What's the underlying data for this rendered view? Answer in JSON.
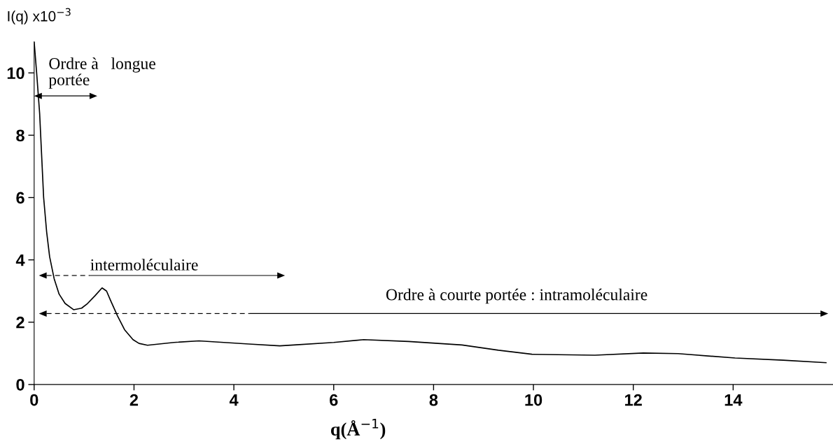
{
  "chart_data": {
    "type": "line",
    "xlabel": "q(Å$^{−1}$)",
    "ylabel": "I(q) x10$^{−3}$",
    "series": [
      {
        "color": "#000000",
        "x": [
          0.0,
          0.05,
          0.11,
          0.19,
          0.25,
          0.31,
          0.4,
          0.5,
          0.62,
          0.79,
          0.95,
          1.07,
          1.22,
          1.36,
          1.45,
          1.53,
          1.67,
          1.81,
          1.98,
          2.1,
          2.27,
          2.8,
          3.3,
          3.8,
          4.3,
          4.92,
          5.2,
          6.0,
          6.6,
          7.5,
          8.57,
          9.3,
          9.97,
          11.23,
          12.2,
          12.9,
          14.04,
          15.0,
          15.86
        ],
        "values": [
          11.0,
          10.0,
          8.7,
          6.0,
          4.9,
          4.1,
          3.4,
          2.9,
          2.6,
          2.4,
          2.45,
          2.6,
          2.85,
          3.1,
          3.0,
          2.7,
          2.2,
          1.76,
          1.44,
          1.32,
          1.26,
          1.35,
          1.4,
          1.35,
          1.3,
          1.24,
          1.27,
          1.35,
          1.44,
          1.38,
          1.27,
          1.1,
          0.97,
          0.94,
          1.01,
          0.99,
          0.85,
          0.78,
          0.7
        ]
      }
    ],
    "xlim": [
      0,
      16
    ],
    "xticks": [
      0,
      2,
      4,
      6,
      8,
      10,
      12,
      14
    ],
    "ylim": [
      0,
      11
    ],
    "yticks": [
      0,
      2,
      4,
      6,
      8,
      10
    ],
    "grid": false,
    "marker": "none",
    "line_style": "solid",
    "annotations": [
      "Ordre à   longue\nportée",
      "intermoléculaire",
      "Ordre à courte portée : intramoléculaire"
    ]
  }
}
